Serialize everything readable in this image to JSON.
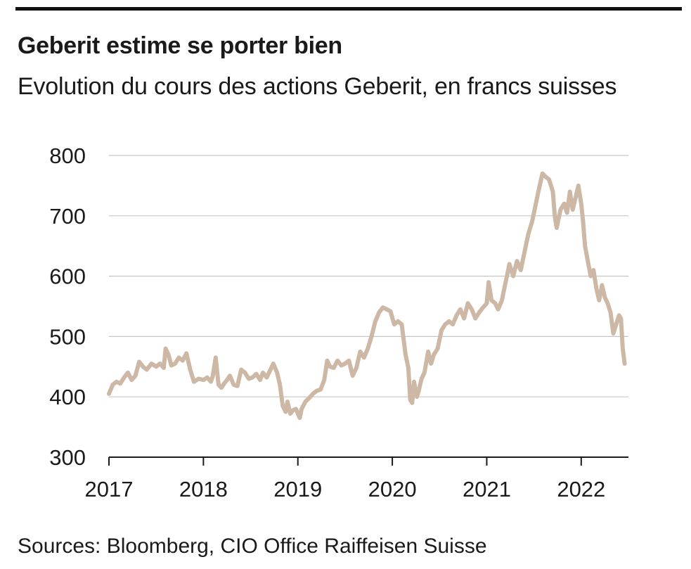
{
  "header": {
    "title": "Geberit estime se porter bien",
    "subtitle": "Evolution du cours des actions Geberit, en francs suisses"
  },
  "footer": {
    "source": "Sources: Bloomberg, CIO Office Raiffeisen Suisse"
  },
  "colors": {
    "line": "#cdb8a6",
    "grid": "#c6c6c6",
    "axis": "#1a1a1a",
    "rule": "#111111"
  },
  "chart_data": {
    "type": "line",
    "title": "Geberit estime se porter bien",
    "subtitle": "Evolution du cours des actions Geberit, en francs suisses",
    "xlabel": "",
    "ylabel": "",
    "xlim": [
      2017.0,
      2022.5
    ],
    "ylim": [
      300,
      800
    ],
    "x_ticks": [
      2017,
      2018,
      2019,
      2020,
      2021,
      2022
    ],
    "y_ticks": [
      300,
      400,
      500,
      600,
      700,
      800
    ],
    "grid": "horizontal",
    "legend": "none",
    "series": [
      {
        "values": [
          [
            2017.0,
            405
          ],
          [
            2017.04,
            420
          ],
          [
            2017.08,
            425
          ],
          [
            2017.12,
            422
          ],
          [
            2017.16,
            432
          ],
          [
            2017.2,
            440
          ],
          [
            2017.24,
            428
          ],
          [
            2017.28,
            435
          ],
          [
            2017.32,
            458
          ],
          [
            2017.36,
            450
          ],
          [
            2017.4,
            445
          ],
          [
            2017.45,
            455
          ],
          [
            2017.5,
            450
          ],
          [
            2017.54,
            455
          ],
          [
            2017.58,
            448
          ],
          [
            2017.6,
            480
          ],
          [
            2017.63,
            470
          ],
          [
            2017.66,
            452
          ],
          [
            2017.7,
            455
          ],
          [
            2017.74,
            465
          ],
          [
            2017.78,
            460
          ],
          [
            2017.82,
            472
          ],
          [
            2017.86,
            445
          ],
          [
            2017.9,
            425
          ],
          [
            2017.95,
            430
          ],
          [
            2018.0,
            428
          ],
          [
            2018.04,
            432
          ],
          [
            2018.08,
            425
          ],
          [
            2018.1,
            435
          ],
          [
            2018.13,
            465
          ],
          [
            2018.16,
            420
          ],
          [
            2018.19,
            415
          ],
          [
            2018.22,
            422
          ],
          [
            2018.25,
            428
          ],
          [
            2018.28,
            435
          ],
          [
            2018.32,
            420
          ],
          [
            2018.36,
            418
          ],
          [
            2018.4,
            445
          ],
          [
            2018.44,
            440
          ],
          [
            2018.48,
            430
          ],
          [
            2018.52,
            432
          ],
          [
            2018.56,
            438
          ],
          [
            2018.6,
            428
          ],
          [
            2018.63,
            440
          ],
          [
            2018.67,
            432
          ],
          [
            2018.71,
            445
          ],
          [
            2018.74,
            455
          ],
          [
            2018.78,
            440
          ],
          [
            2018.81,
            420
          ],
          [
            2018.84,
            385
          ],
          [
            2018.87,
            375
          ],
          [
            2018.89,
            392
          ],
          [
            2018.92,
            372
          ],
          [
            2018.95,
            378
          ],
          [
            2018.98,
            380
          ],
          [
            2019.02,
            365
          ],
          [
            2019.04,
            380
          ],
          [
            2019.08,
            392
          ],
          [
            2019.12,
            398
          ],
          [
            2019.16,
            405
          ],
          [
            2019.2,
            410
          ],
          [
            2019.24,
            412
          ],
          [
            2019.28,
            428
          ],
          [
            2019.31,
            460
          ],
          [
            2019.34,
            450
          ],
          [
            2019.38,
            448
          ],
          [
            2019.42,
            460
          ],
          [
            2019.46,
            452
          ],
          [
            2019.5,
            455
          ],
          [
            2019.54,
            460
          ],
          [
            2019.58,
            435
          ],
          [
            2019.62,
            448
          ],
          [
            2019.66,
            475
          ],
          [
            2019.7,
            465
          ],
          [
            2019.74,
            480
          ],
          [
            2019.78,
            500
          ],
          [
            2019.82,
            525
          ],
          [
            2019.86,
            540
          ],
          [
            2019.9,
            548
          ],
          [
            2019.94,
            545
          ],
          [
            2019.98,
            542
          ],
          [
            2020.02,
            520
          ],
          [
            2020.06,
            525
          ],
          [
            2020.1,
            520
          ],
          [
            2020.14,
            470
          ],
          [
            2020.17,
            448
          ],
          [
            2020.19,
            395
          ],
          [
            2020.21,
            390
          ],
          [
            2020.23,
            425
          ],
          [
            2020.26,
            400
          ],
          [
            2020.28,
            410
          ],
          [
            2020.31,
            430
          ],
          [
            2020.34,
            440
          ],
          [
            2020.38,
            475
          ],
          [
            2020.41,
            455
          ],
          [
            2020.44,
            470
          ],
          [
            2020.48,
            480
          ],
          [
            2020.52,
            510
          ],
          [
            2020.56,
            520
          ],
          [
            2020.6,
            525
          ],
          [
            2020.64,
            520
          ],
          [
            2020.68,
            535
          ],
          [
            2020.72,
            545
          ],
          [
            2020.76,
            530
          ],
          [
            2020.8,
            555
          ],
          [
            2020.84,
            545
          ],
          [
            2020.88,
            530
          ],
          [
            2020.92,
            540
          ],
          [
            2020.96,
            548
          ],
          [
            2021.0,
            555
          ],
          [
            2021.02,
            590
          ],
          [
            2021.05,
            560
          ],
          [
            2021.09,
            555
          ],
          [
            2021.12,
            545
          ],
          [
            2021.16,
            560
          ],
          [
            2021.2,
            590
          ],
          [
            2021.24,
            620
          ],
          [
            2021.28,
            600
          ],
          [
            2021.32,
            625
          ],
          [
            2021.36,
            610
          ],
          [
            2021.4,
            640
          ],
          [
            2021.44,
            670
          ],
          [
            2021.48,
            690
          ],
          [
            2021.52,
            720
          ],
          [
            2021.56,
            750
          ],
          [
            2021.59,
            770
          ],
          [
            2021.62,
            765
          ],
          [
            2021.66,
            760
          ],
          [
            2021.7,
            740
          ],
          [
            2021.72,
            700
          ],
          [
            2021.74,
            680
          ],
          [
            2021.78,
            710
          ],
          [
            2021.82,
            720
          ],
          [
            2021.85,
            705
          ],
          [
            2021.88,
            740
          ],
          [
            2021.91,
            710
          ],
          [
            2021.94,
            730
          ],
          [
            2021.97,
            750
          ],
          [
            2022.0,
            720
          ],
          [
            2022.02,
            690
          ],
          [
            2022.04,
            650
          ],
          [
            2022.07,
            625
          ],
          [
            2022.1,
            600
          ],
          [
            2022.13,
            610
          ],
          [
            2022.16,
            580
          ],
          [
            2022.19,
            560
          ],
          [
            2022.22,
            585
          ],
          [
            2022.25,
            565
          ],
          [
            2022.28,
            555
          ],
          [
            2022.31,
            540
          ],
          [
            2022.34,
            505
          ],
          [
            2022.37,
            520
          ],
          [
            2022.4,
            535
          ],
          [
            2022.42,
            530
          ],
          [
            2022.44,
            480
          ],
          [
            2022.46,
            455
          ]
        ]
      }
    ]
  }
}
